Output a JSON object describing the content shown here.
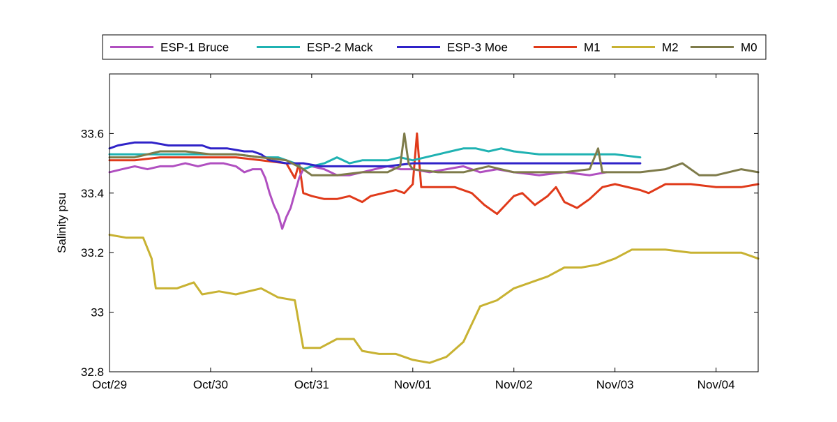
{
  "chart_data": {
    "type": "line",
    "title": "",
    "xlabel": "",
    "ylabel": "Salinity psu",
    "x_type": "date",
    "xlim": [
      "2012-10-29T00:00",
      "2012-11-04T10:00"
    ],
    "ylim": [
      32.8,
      33.8
    ],
    "x_ticks": [
      {
        "value": "2012-10-29T00:00",
        "label": "Oct/29"
      },
      {
        "value": "2012-10-30T00:00",
        "label": "Oct/30"
      },
      {
        "value": "2012-10-31T00:00",
        "label": "Oct/31"
      },
      {
        "value": "2012-11-01T00:00",
        "label": "Nov/01"
      },
      {
        "value": "2012-11-02T00:00",
        "label": "Nov/02"
      },
      {
        "value": "2012-11-03T00:00",
        "label": "Nov/03"
      },
      {
        "value": "2012-11-04T00:00",
        "label": "Nov/04"
      }
    ],
    "y_ticks": [
      {
        "value": 32.8,
        "label": "32.8"
      },
      {
        "value": 33.0,
        "label": "33"
      },
      {
        "value": 33.2,
        "label": "33.2"
      },
      {
        "value": 33.4,
        "label": "33.4"
      },
      {
        "value": 33.6,
        "label": "33.6"
      }
    ],
    "grid": false,
    "legend": {
      "position": "top",
      "orientation": "horizontal"
    },
    "series": [
      {
        "name": "ESP-1 Bruce",
        "color": "#b04fc0",
        "points": [
          [
            "2012-10-29T00:00",
            33.47
          ],
          [
            "2012-10-29T03:00",
            33.48
          ],
          [
            "2012-10-29T06:00",
            33.49
          ],
          [
            "2012-10-29T09:00",
            33.48
          ],
          [
            "2012-10-29T12:00",
            33.49
          ],
          [
            "2012-10-29T15:00",
            33.49
          ],
          [
            "2012-10-29T18:00",
            33.5
          ],
          [
            "2012-10-29T21:00",
            33.49
          ],
          [
            "2012-10-30T00:00",
            33.5
          ],
          [
            "2012-10-30T03:00",
            33.5
          ],
          [
            "2012-10-30T06:00",
            33.49
          ],
          [
            "2012-10-30T08:00",
            33.47
          ],
          [
            "2012-10-30T10:00",
            33.48
          ],
          [
            "2012-10-30T12:00",
            33.48
          ],
          [
            "2012-10-30T13:00",
            33.45
          ],
          [
            "2012-10-30T14:00",
            33.4
          ],
          [
            "2012-10-30T15:00",
            33.36
          ],
          [
            "2012-10-30T16:00",
            33.33
          ],
          [
            "2012-10-30T17:00",
            33.28
          ],
          [
            "2012-10-30T18:00",
            33.32
          ],
          [
            "2012-10-30T19:00",
            33.35
          ],
          [
            "2012-10-30T20:00",
            33.4
          ],
          [
            "2012-10-30T21:00",
            33.45
          ],
          [
            "2012-10-30T22:00",
            33.48
          ],
          [
            "2012-10-31T00:00",
            33.49
          ],
          [
            "2012-10-31T03:00",
            33.48
          ],
          [
            "2012-10-31T06:00",
            33.46
          ],
          [
            "2012-10-31T09:00",
            33.46
          ],
          [
            "2012-10-31T12:00",
            33.47
          ],
          [
            "2012-10-31T15:00",
            33.48
          ],
          [
            "2012-10-31T18:00",
            33.49
          ],
          [
            "2012-10-31T21:00",
            33.48
          ],
          [
            "2012-11-01T00:00",
            33.48
          ],
          [
            "2012-11-01T04:00",
            33.47
          ],
          [
            "2012-11-01T08:00",
            33.48
          ],
          [
            "2012-11-01T12:00",
            33.49
          ],
          [
            "2012-11-01T16:00",
            33.47
          ],
          [
            "2012-11-01T20:00",
            33.48
          ],
          [
            "2012-11-02T00:00",
            33.47
          ],
          [
            "2012-11-02T06:00",
            33.46
          ],
          [
            "2012-11-02T12:00",
            33.47
          ],
          [
            "2012-11-02T18:00",
            33.46
          ],
          [
            "2012-11-02T22:00",
            33.47
          ]
        ]
      },
      {
        "name": "ESP-2 Mack",
        "color": "#1fb2b2",
        "points": [
          [
            "2012-10-29T00:00",
            33.53
          ],
          [
            "2012-10-29T06:00",
            33.53
          ],
          [
            "2012-10-29T12:00",
            33.53
          ],
          [
            "2012-10-29T18:00",
            33.53
          ],
          [
            "2012-10-30T00:00",
            33.53
          ],
          [
            "2012-10-30T06:00",
            33.53
          ],
          [
            "2012-10-30T12:00",
            33.52
          ],
          [
            "2012-10-30T16:00",
            33.52
          ],
          [
            "2012-10-30T20:00",
            33.5
          ],
          [
            "2012-10-30T22:00",
            33.48
          ],
          [
            "2012-10-31T00:00",
            33.49
          ],
          [
            "2012-10-31T03:00",
            33.5
          ],
          [
            "2012-10-31T06:00",
            33.52
          ],
          [
            "2012-10-31T09:00",
            33.5
          ],
          [
            "2012-10-31T12:00",
            33.51
          ],
          [
            "2012-10-31T15:00",
            33.51
          ],
          [
            "2012-10-31T18:00",
            33.51
          ],
          [
            "2012-10-31T21:00",
            33.52
          ],
          [
            "2012-11-01T00:00",
            33.51
          ],
          [
            "2012-11-01T03:00",
            33.52
          ],
          [
            "2012-11-01T06:00",
            33.53
          ],
          [
            "2012-11-01T09:00",
            33.54
          ],
          [
            "2012-11-01T12:00",
            33.55
          ],
          [
            "2012-11-01T15:00",
            33.55
          ],
          [
            "2012-11-01T18:00",
            33.54
          ],
          [
            "2012-11-01T21:00",
            33.55
          ],
          [
            "2012-11-02T00:00",
            33.54
          ],
          [
            "2012-11-02T06:00",
            33.53
          ],
          [
            "2012-11-02T12:00",
            33.53
          ],
          [
            "2012-11-02T18:00",
            33.53
          ],
          [
            "2012-11-03T00:00",
            33.53
          ],
          [
            "2012-11-03T06:00",
            33.52
          ]
        ]
      },
      {
        "name": "ESP-3 Moe",
        "color": "#2f22c8",
        "points": [
          [
            "2012-10-29T00:00",
            33.55
          ],
          [
            "2012-10-29T02:00",
            33.56
          ],
          [
            "2012-10-29T06:00",
            33.57
          ],
          [
            "2012-10-29T10:00",
            33.57
          ],
          [
            "2012-10-29T14:00",
            33.56
          ],
          [
            "2012-10-29T18:00",
            33.56
          ],
          [
            "2012-10-29T22:00",
            33.56
          ],
          [
            "2012-10-30T00:00",
            33.55
          ],
          [
            "2012-10-30T04:00",
            33.55
          ],
          [
            "2012-10-30T08:00",
            33.54
          ],
          [
            "2012-10-30T10:00",
            33.54
          ],
          [
            "2012-10-30T12:00",
            33.53
          ],
          [
            "2012-10-30T14:00",
            33.51
          ],
          [
            "2012-10-30T18:00",
            33.5
          ],
          [
            "2012-10-30T22:00",
            33.5
          ],
          [
            "2012-10-31T02:00",
            33.49
          ],
          [
            "2012-10-31T06:00",
            33.49
          ],
          [
            "2012-10-31T12:00",
            33.49
          ],
          [
            "2012-10-31T18:00",
            33.49
          ],
          [
            "2012-11-01T00:00",
            33.5
          ],
          [
            "2012-11-01T06:00",
            33.5
          ],
          [
            "2012-11-01T12:00",
            33.5
          ],
          [
            "2012-11-01T18:00",
            33.5
          ],
          [
            "2012-11-02T00:00",
            33.5
          ],
          [
            "2012-11-02T06:00",
            33.5
          ],
          [
            "2012-11-02T12:00",
            33.5
          ],
          [
            "2012-11-02T18:00",
            33.5
          ],
          [
            "2012-11-03T00:00",
            33.5
          ],
          [
            "2012-11-03T06:00",
            33.5
          ]
        ]
      },
      {
        "name": "M1",
        "color": "#e03a1a",
        "points": [
          [
            "2012-10-29T00:00",
            33.51
          ],
          [
            "2012-10-29T06:00",
            33.51
          ],
          [
            "2012-10-29T12:00",
            33.52
          ],
          [
            "2012-10-29T18:00",
            33.52
          ],
          [
            "2012-10-30T00:00",
            33.52
          ],
          [
            "2012-10-30T06:00",
            33.52
          ],
          [
            "2012-10-30T12:00",
            33.51
          ],
          [
            "2012-10-30T18:00",
            33.5
          ],
          [
            "2012-10-30T20:00",
            33.45
          ],
          [
            "2012-10-30T21:00",
            33.5
          ],
          [
            "2012-10-30T22:00",
            33.4
          ],
          [
            "2012-10-31T00:00",
            33.39
          ],
          [
            "2012-10-31T03:00",
            33.38
          ],
          [
            "2012-10-31T06:00",
            33.38
          ],
          [
            "2012-10-31T09:00",
            33.39
          ],
          [
            "2012-10-31T12:00",
            33.37
          ],
          [
            "2012-10-31T14:00",
            33.39
          ],
          [
            "2012-10-31T17:00",
            33.4
          ],
          [
            "2012-10-31T20:00",
            33.41
          ],
          [
            "2012-10-31T22:00",
            33.4
          ],
          [
            "2012-11-01T00:00",
            33.43
          ],
          [
            "2012-11-01T01:00",
            33.6
          ],
          [
            "2012-11-01T02:00",
            33.42
          ],
          [
            "2012-11-01T06:00",
            33.42
          ],
          [
            "2012-11-01T10:00",
            33.42
          ],
          [
            "2012-11-01T14:00",
            33.4
          ],
          [
            "2012-11-01T17:00",
            33.36
          ],
          [
            "2012-11-01T20:00",
            33.33
          ],
          [
            "2012-11-01T22:00",
            33.36
          ],
          [
            "2012-11-02T00:00",
            33.39
          ],
          [
            "2012-11-02T02:00",
            33.4
          ],
          [
            "2012-11-02T05:00",
            33.36
          ],
          [
            "2012-11-02T08:00",
            33.39
          ],
          [
            "2012-11-02T10:00",
            33.42
          ],
          [
            "2012-11-02T12:00",
            33.37
          ],
          [
            "2012-11-02T15:00",
            33.35
          ],
          [
            "2012-11-02T18:00",
            33.38
          ],
          [
            "2012-11-02T21:00",
            33.42
          ],
          [
            "2012-11-03T00:00",
            33.43
          ],
          [
            "2012-11-03T06:00",
            33.41
          ],
          [
            "2012-11-03T08:00",
            33.4
          ],
          [
            "2012-11-03T12:00",
            33.43
          ],
          [
            "2012-11-03T18:00",
            33.43
          ],
          [
            "2012-11-04T00:00",
            33.42
          ],
          [
            "2012-11-04T06:00",
            33.42
          ],
          [
            "2012-11-04T10:00",
            33.43
          ]
        ]
      },
      {
        "name": "M2",
        "color": "#c8b232",
        "points": [
          [
            "2012-10-29T00:00",
            33.26
          ],
          [
            "2012-10-29T04:00",
            33.25
          ],
          [
            "2012-10-29T08:00",
            33.25
          ],
          [
            "2012-10-29T10:00",
            33.18
          ],
          [
            "2012-10-29T11:00",
            33.08
          ],
          [
            "2012-10-29T16:00",
            33.08
          ],
          [
            "2012-10-29T20:00",
            33.1
          ],
          [
            "2012-10-29T22:00",
            33.06
          ],
          [
            "2012-10-30T02:00",
            33.07
          ],
          [
            "2012-10-30T06:00",
            33.06
          ],
          [
            "2012-10-30T12:00",
            33.08
          ],
          [
            "2012-10-30T16:00",
            33.05
          ],
          [
            "2012-10-30T20:00",
            33.04
          ],
          [
            "2012-10-30T22:00",
            32.88
          ],
          [
            "2012-10-31T02:00",
            32.88
          ],
          [
            "2012-10-31T06:00",
            32.91
          ],
          [
            "2012-10-31T10:00",
            32.91
          ],
          [
            "2012-10-31T12:00",
            32.87
          ],
          [
            "2012-10-31T16:00",
            32.86
          ],
          [
            "2012-10-31T20:00",
            32.86
          ],
          [
            "2012-11-01T00:00",
            32.84
          ],
          [
            "2012-11-01T04:00",
            32.83
          ],
          [
            "2012-11-01T08:00",
            32.85
          ],
          [
            "2012-11-01T12:00",
            32.9
          ],
          [
            "2012-11-01T16:00",
            33.02
          ],
          [
            "2012-11-01T20:00",
            33.04
          ],
          [
            "2012-11-02T00:00",
            33.08
          ],
          [
            "2012-11-02T04:00",
            33.1
          ],
          [
            "2012-11-02T08:00",
            33.12
          ],
          [
            "2012-11-02T12:00",
            33.15
          ],
          [
            "2012-11-02T16:00",
            33.15
          ],
          [
            "2012-11-02T20:00",
            33.16
          ],
          [
            "2012-11-03T00:00",
            33.18
          ],
          [
            "2012-11-03T04:00",
            33.21
          ],
          [
            "2012-11-03T08:00",
            33.21
          ],
          [
            "2012-11-03T12:00",
            33.21
          ],
          [
            "2012-11-03T18:00",
            33.2
          ],
          [
            "2012-11-04T00:00",
            33.2
          ],
          [
            "2012-11-04T06:00",
            33.2
          ],
          [
            "2012-11-04T10:00",
            33.18
          ]
        ]
      },
      {
        "name": "M0",
        "color": "#7e7b4a",
        "points": [
          [
            "2012-10-29T00:00",
            33.52
          ],
          [
            "2012-10-29T06:00",
            33.52
          ],
          [
            "2012-10-29T12:00",
            33.54
          ],
          [
            "2012-10-29T18:00",
            33.54
          ],
          [
            "2012-10-30T00:00",
            33.53
          ],
          [
            "2012-10-30T06:00",
            33.53
          ],
          [
            "2012-10-30T12:00",
            33.52
          ],
          [
            "2012-10-30T18:00",
            33.51
          ],
          [
            "2012-10-30T22:00",
            33.48
          ],
          [
            "2012-10-31T00:00",
            33.46
          ],
          [
            "2012-10-31T06:00",
            33.46
          ],
          [
            "2012-10-31T12:00",
            33.47
          ],
          [
            "2012-10-31T18:00",
            33.47
          ],
          [
            "2012-10-31T21:00",
            33.49
          ],
          [
            "2012-10-31T22:00",
            33.6
          ],
          [
            "2012-10-31T23:00",
            33.5
          ],
          [
            "2012-11-01T00:00",
            33.48
          ],
          [
            "2012-11-01T06:00",
            33.47
          ],
          [
            "2012-11-01T12:00",
            33.47
          ],
          [
            "2012-11-01T18:00",
            33.49
          ],
          [
            "2012-11-02T00:00",
            33.47
          ],
          [
            "2012-11-02T06:00",
            33.47
          ],
          [
            "2012-11-02T12:00",
            33.47
          ],
          [
            "2012-11-02T18:00",
            33.48
          ],
          [
            "2012-11-02T20:00",
            33.55
          ],
          [
            "2012-11-02T21:00",
            33.47
          ],
          [
            "2012-11-03T00:00",
            33.47
          ],
          [
            "2012-11-03T06:00",
            33.47
          ],
          [
            "2012-11-03T12:00",
            33.48
          ],
          [
            "2012-11-03T16:00",
            33.5
          ],
          [
            "2012-11-03T20:00",
            33.46
          ],
          [
            "2012-11-04T00:00",
            33.46
          ],
          [
            "2012-11-04T06:00",
            33.48
          ],
          [
            "2012-11-04T10:00",
            33.47
          ]
        ]
      }
    ]
  }
}
